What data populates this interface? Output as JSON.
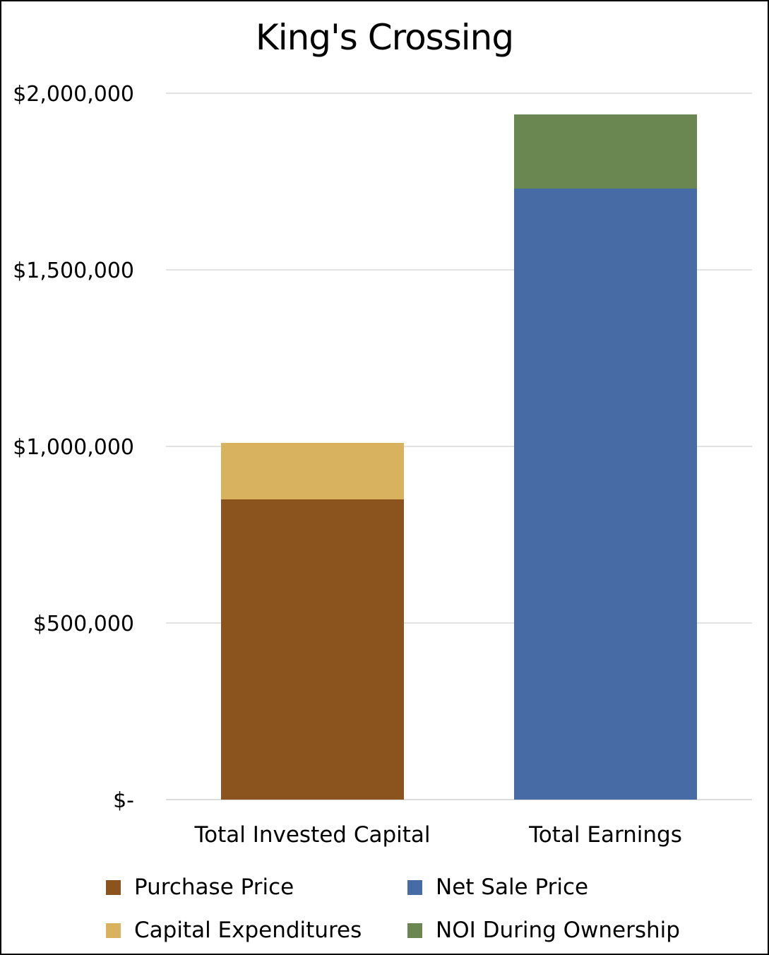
{
  "chart_data": {
    "type": "bar",
    "stacked": true,
    "title": "King's Crossing",
    "xlabel": "",
    "ylabel": "",
    "categories": [
      "Total Invested Capital",
      "Total Earnings"
    ],
    "ylim": [
      0,
      2000000
    ],
    "yticks": [
      0,
      500000,
      1000000,
      1500000,
      2000000
    ],
    "ytick_labels": [
      "$-",
      "$500,000",
      "$1,000,000",
      "$1,500,000",
      "$2,000,000"
    ],
    "grid": true,
    "legend_position": "bottom",
    "series": [
      {
        "name": "Purchase Price",
        "color": "#8B531E",
        "values": [
          850000,
          0
        ]
      },
      {
        "name": "Capital Expenditures",
        "color": "#D8B25F",
        "values": [
          160000,
          0
        ]
      },
      {
        "name": "Net Sale Price",
        "color": "#476BA5",
        "values": [
          0,
          1730000
        ]
      },
      {
        "name": "NOI During Ownership",
        "color": "#6A8651",
        "values": [
          0,
          210000
        ]
      }
    ]
  }
}
